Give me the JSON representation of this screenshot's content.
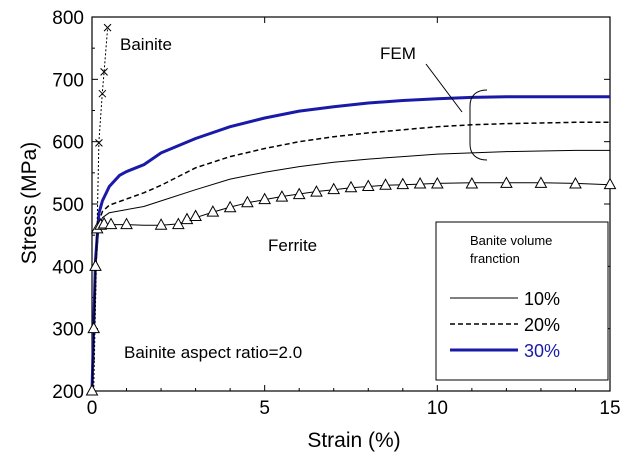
{
  "chart_data": {
    "type": "line",
    "xlabel": "Strain (%)",
    "ylabel": "Stress (MPa)",
    "xlim": [
      0,
      15
    ],
    "ylim": [
      200,
      800
    ],
    "x_ticks": [
      0,
      5,
      10,
      15
    ],
    "y_ticks": [
      200,
      300,
      400,
      500,
      600,
      700,
      800
    ],
    "grid": false,
    "legend": {
      "title": "Banite volume fraction",
      "title_line1": "Banite volume",
      "title_line2": "franction",
      "position": "lower-right",
      "entries": [
        {
          "label": "10%",
          "style": "solid-thin",
          "color": "#000000"
        },
        {
          "label": "20%",
          "style": "dashed",
          "color": "#000000"
        },
        {
          "label": "30%",
          "style": "solid-thick",
          "color": "#1a1aa8"
        }
      ]
    },
    "annotations": {
      "bainite": "Bainite",
      "fem": "FEM",
      "ferrite": "Ferrite",
      "aspect": "Bainite aspect ratio=2.0"
    },
    "series": [
      {
        "name": "10%",
        "style": "solid-thin",
        "color": "#000000",
        "points": [
          [
            0,
            200
          ],
          [
            0.1,
            390
          ],
          [
            0.2,
            465
          ],
          [
            0.3,
            478
          ],
          [
            0.5,
            486
          ],
          [
            1.0,
            491
          ],
          [
            1.5,
            496
          ],
          [
            2.0,
            505
          ],
          [
            3.0,
            523
          ],
          [
            4.0,
            540
          ],
          [
            5.0,
            551
          ],
          [
            6.0,
            560
          ],
          [
            7.0,
            567
          ],
          [
            8.0,
            572
          ],
          [
            9.0,
            576
          ],
          [
            10.0,
            580
          ],
          [
            11.0,
            582
          ],
          [
            12.0,
            584
          ],
          [
            13.0,
            585
          ],
          [
            14.0,
            586
          ],
          [
            15.0,
            586
          ]
        ]
      },
      {
        "name": "20%",
        "style": "dashed",
        "color": "#000000",
        "points": [
          [
            0,
            200
          ],
          [
            0.1,
            400
          ],
          [
            0.2,
            472
          ],
          [
            0.3,
            488
          ],
          [
            0.5,
            498
          ],
          [
            1.0,
            508
          ],
          [
            1.5,
            518
          ],
          [
            2.0,
            530
          ],
          [
            3.0,
            558
          ],
          [
            4.0,
            576
          ],
          [
            5.0,
            589
          ],
          [
            6.0,
            600
          ],
          [
            7.0,
            608
          ],
          [
            8.0,
            614
          ],
          [
            9.0,
            619
          ],
          [
            10.0,
            624
          ],
          [
            11.0,
            627
          ],
          [
            12.0,
            629
          ],
          [
            13.0,
            630
          ],
          [
            14.0,
            631
          ],
          [
            15.0,
            631
          ]
        ]
      },
      {
        "name": "30%",
        "style": "solid-thick",
        "color": "#1a1aa8",
        "points": [
          [
            0,
            200
          ],
          [
            0.1,
            410
          ],
          [
            0.2,
            485
          ],
          [
            0.3,
            505
          ],
          [
            0.5,
            528
          ],
          [
            0.8,
            546
          ],
          [
            1.0,
            552
          ],
          [
            1.5,
            563
          ],
          [
            2.0,
            582
          ],
          [
            3.0,
            605
          ],
          [
            4.0,
            624
          ],
          [
            5.0,
            638
          ],
          [
            6.0,
            649
          ],
          [
            7.0,
            656
          ],
          [
            8.0,
            662
          ],
          [
            9.0,
            666
          ],
          [
            10.0,
            669
          ],
          [
            11.0,
            671
          ],
          [
            12.0,
            672
          ],
          [
            13.0,
            672
          ],
          [
            14.0,
            672
          ],
          [
            15.0,
            672
          ]
        ]
      },
      {
        "name": "Ferrite",
        "style": "thin-markers-triangle",
        "color": "#000000",
        "points": [
          [
            0,
            200
          ],
          [
            0.05,
            300
          ],
          [
            0.1,
            400
          ],
          [
            0.15,
            460
          ],
          [
            0.25,
            466
          ],
          [
            0.5,
            467
          ],
          [
            1.0,
            467
          ],
          [
            1.5,
            466
          ],
          [
            2.0,
            466
          ],
          [
            2.5,
            468
          ],
          [
            2.75,
            473
          ],
          [
            3.0,
            478
          ],
          [
            3.5,
            487
          ],
          [
            4.0,
            495
          ],
          [
            4.5,
            502
          ],
          [
            5.0,
            507
          ],
          [
            5.5,
            512
          ],
          [
            6.0,
            516
          ],
          [
            6.5,
            520
          ],
          [
            7.0,
            523
          ],
          [
            7.5,
            526
          ],
          [
            8.0,
            528
          ],
          [
            8.5,
            530
          ],
          [
            9.0,
            531
          ],
          [
            9.5,
            532
          ],
          [
            10.0,
            533
          ],
          [
            11.0,
            534
          ],
          [
            12.0,
            534
          ],
          [
            13.0,
            534
          ],
          [
            14.0,
            533
          ],
          [
            15.0,
            531
          ]
        ],
        "markers": [
          [
            0,
            200
          ],
          [
            0.05,
            300
          ],
          [
            0.1,
            400
          ],
          [
            0.15,
            460
          ],
          [
            0.25,
            466
          ],
          [
            0.35,
            468
          ],
          [
            0.55,
            467
          ],
          [
            1.0,
            467
          ],
          [
            2.0,
            466
          ],
          [
            2.5,
            467
          ],
          [
            2.75,
            475
          ],
          [
            3.0,
            480
          ],
          [
            3.5,
            487
          ],
          [
            4.0,
            494
          ],
          [
            4.5,
            502
          ],
          [
            5.0,
            507
          ],
          [
            5.5,
            511
          ],
          [
            6.0,
            515
          ],
          [
            6.5,
            519
          ],
          [
            7.0,
            523
          ],
          [
            7.5,
            526
          ],
          [
            8.0,
            528
          ],
          [
            8.5,
            530
          ],
          [
            9.0,
            531
          ],
          [
            9.5,
            532
          ],
          [
            10.0,
            532
          ],
          [
            11.0,
            532
          ],
          [
            12.0,
            533
          ],
          [
            13.0,
            533
          ],
          [
            14.0,
            532
          ],
          [
            15.0,
            531
          ]
        ]
      },
      {
        "name": "Bainite",
        "style": "dotted-markers-x",
        "color": "#000000",
        "points": [
          [
            0.05,
            200
          ],
          [
            0.2,
            600
          ],
          [
            0.3,
            680
          ],
          [
            0.35,
            712
          ],
          [
            0.45,
            780
          ]
        ],
        "markers": [
          [
            0.2,
            598
          ],
          [
            0.3,
            677
          ],
          [
            0.35,
            712
          ],
          [
            0.45,
            783
          ]
        ]
      }
    ]
  }
}
